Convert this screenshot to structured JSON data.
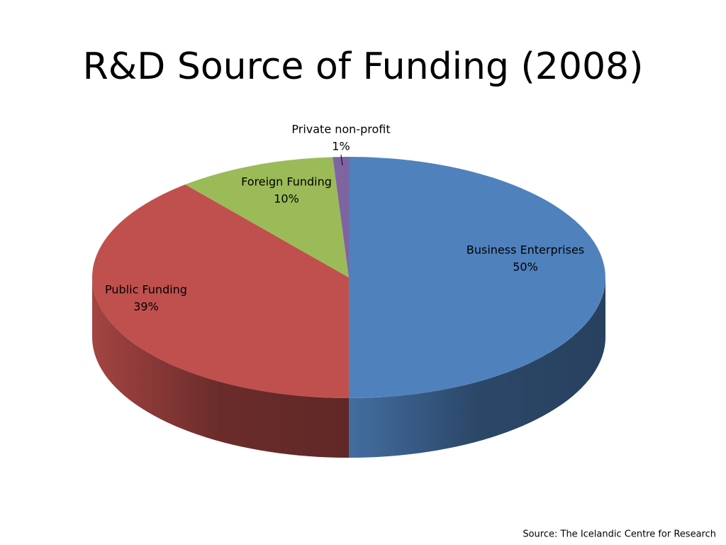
{
  "chart_data": {
    "type": "pie",
    "title": "R&D Source of Funding (2008)",
    "categories": [
      "Business Enterprises",
      "Public Funding",
      "Foreign Funding",
      "Private non-profit"
    ],
    "values": [
      50,
      39,
      10,
      1
    ],
    "value_labels": [
      "50%",
      "39%",
      "10%",
      "1%"
    ],
    "colors": [
      "#4f81bd",
      "#c0504d",
      "#9bbb59",
      "#8064a2"
    ],
    "source": "Source: The Icelandic Centre for Research"
  }
}
